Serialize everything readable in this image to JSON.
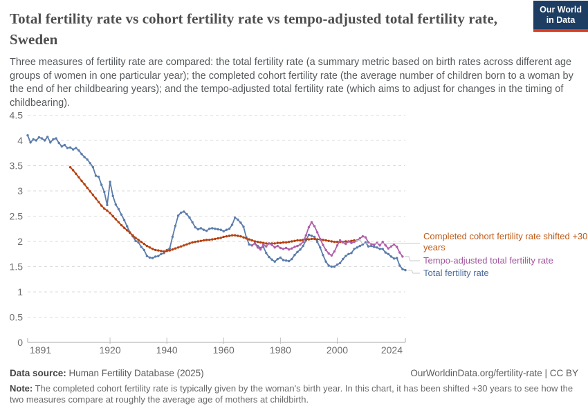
{
  "header": {
    "title": "Total fertility rate vs cohort fertility rate vs tempo-adjusted total fertility rate, Sweden",
    "subtitle": "Three measures of fertility rate are compared: the total fertility rate (a summary metric based on birth rates across different age groups of women in one particular year); the completed cohort fertility rate (the average number of children born to a woman by the end of her childbearing years); and the tempo-adjusted total fertility rate (which aims to adjust for changes in the timing of childbearing).",
    "logo": {
      "line1": "Our World",
      "line2": "in Data"
    }
  },
  "legend": {
    "items": [
      {
        "label": "Completed cohort fertility rate shifted +30 years",
        "color": "#be5915"
      },
      {
        "label": "Tempo-adjusted total fertility rate",
        "color": "#a2559c"
      },
      {
        "label": "Total fertility rate",
        "color": "#4c6a9c"
      }
    ]
  },
  "footer": {
    "source_label": "Data source:",
    "source_value": " Human Fertility Database (2025)",
    "link": "OurWorldinData.org/fertility-rate | CC BY",
    "note_label": "Note:",
    "note_text": " The completed cohort fertility rate is typically given by the woman's birth year. In this chart, it has been shifted +30 years to see how the two measures compare at roughly the average age of mothers at childbirth."
  },
  "chart_data": {
    "type": "line",
    "title": "Total fertility rate vs cohort fertility rate vs tempo-adjusted total fertility rate, Sweden",
    "xlabel": "",
    "ylabel": "",
    "xlim": [
      1891,
      2024
    ],
    "ylim": [
      0,
      4.5
    ],
    "grid": "horizontal-dashed",
    "legend_position": "right-of-line-ends",
    "x_ticks": [
      {
        "v": 1891,
        "label": "1891"
      },
      {
        "v": 1920,
        "label": "1920"
      },
      {
        "v": 1940,
        "label": "1940"
      },
      {
        "v": 1960,
        "label": "1960"
      },
      {
        "v": 1980,
        "label": "1980"
      },
      {
        "v": 2000,
        "label": "2000"
      },
      {
        "v": 2024,
        "label": "2024"
      }
    ],
    "y_ticks": [
      {
        "v": 0,
        "label": "0"
      },
      {
        "v": 0.5,
        "label": "0.5"
      },
      {
        "v": 1,
        "label": "1"
      },
      {
        "v": 1.5,
        "label": "1.5"
      },
      {
        "v": 2,
        "label": "2"
      },
      {
        "v": 2.5,
        "label": "2.5"
      },
      {
        "v": 3,
        "label": "3"
      },
      {
        "v": 3.5,
        "label": "3.5"
      },
      {
        "v": 4,
        "label": "4"
      },
      {
        "v": 4.5,
        "label": "4.5"
      }
    ],
    "series": [
      {
        "name": "Total fertility rate",
        "color": "#5b7cab",
        "start_year": 1891,
        "values": [
          4.1,
          3.96,
          4.02,
          4.0,
          4.06,
          4.04,
          4.0,
          4.07,
          3.96,
          4.02,
          4.04,
          3.95,
          3.88,
          3.91,
          3.85,
          3.86,
          3.82,
          3.85,
          3.8,
          3.73,
          3.67,
          3.62,
          3.55,
          3.47,
          3.3,
          3.28,
          3.12,
          2.98,
          2.72,
          3.18,
          2.9,
          2.73,
          2.64,
          2.53,
          2.42,
          2.3,
          2.18,
          2.1,
          2.01,
          1.98,
          1.89,
          1.83,
          1.71,
          1.68,
          1.67,
          1.7,
          1.71,
          1.75,
          1.77,
          1.83,
          1.86,
          2.09,
          2.31,
          2.51,
          2.57,
          2.59,
          2.54,
          2.47,
          2.38,
          2.28,
          2.24,
          2.26,
          2.23,
          2.21,
          2.25,
          2.26,
          2.25,
          2.24,
          2.23,
          2.2,
          2.23,
          2.25,
          2.33,
          2.47,
          2.43,
          2.37,
          2.29,
          2.08,
          1.94,
          1.92,
          1.96,
          1.91,
          1.87,
          1.89,
          1.77,
          1.69,
          1.64,
          1.6,
          1.65,
          1.68,
          1.63,
          1.62,
          1.61,
          1.65,
          1.73,
          1.79,
          1.84,
          1.91,
          2.02,
          2.13,
          2.11,
          2.09,
          1.99,
          1.88,
          1.73,
          1.6,
          1.52,
          1.5,
          1.5,
          1.54,
          1.57,
          1.65,
          1.71,
          1.75,
          1.77,
          1.85,
          1.88,
          1.91,
          1.94,
          1.98,
          1.9,
          1.91,
          1.89,
          1.88,
          1.85,
          1.85,
          1.78,
          1.75,
          1.7,
          1.66,
          1.67,
          1.52,
          1.45,
          1.43
        ]
      },
      {
        "name": "Completed cohort fertility rate shifted +30 years",
        "color": "#b5400f",
        "start_year": 1906,
        "values": [
          3.47,
          3.41,
          3.34,
          3.27,
          3.2,
          3.13,
          3.06,
          2.99,
          2.92,
          2.85,
          2.78,
          2.71,
          2.65,
          2.61,
          2.56,
          2.5,
          2.44,
          2.38,
          2.32,
          2.27,
          2.22,
          2.17,
          2.12,
          2.07,
          2.03,
          1.99,
          1.95,
          1.91,
          1.88,
          1.85,
          1.83,
          1.82,
          1.81,
          1.8,
          1.81,
          1.82,
          1.84,
          1.86,
          1.88,
          1.9,
          1.92,
          1.94,
          1.96,
          1.98,
          1.99,
          2.0,
          2.01,
          2.02,
          2.03,
          2.03,
          2.04,
          2.05,
          2.06,
          2.07,
          2.09,
          2.1,
          2.11,
          2.12,
          2.12,
          2.11,
          2.1,
          2.08,
          2.06,
          2.04,
          2.02,
          2.0,
          1.99,
          1.98,
          1.97,
          1.96,
          1.96,
          1.96,
          1.96,
          1.97,
          1.97,
          1.98,
          1.98,
          1.99,
          2.0,
          2.01,
          2.02,
          2.02,
          2.03,
          2.04,
          2.04,
          2.05,
          2.05,
          2.04,
          2.04,
          2.03,
          2.02,
          2.01,
          2.0,
          1.99,
          1.99,
          1.99,
          1.99,
          2.0,
          2.0,
          2.01,
          2.02
        ]
      },
      {
        "name": "Tempo-adjusted total fertility rate",
        "color": "#b05fa9",
        "start_year": 1970,
        "values": [
          1.92,
          1.96,
          1.88,
          1.84,
          1.94,
          1.9,
          1.96,
          1.93,
          1.88,
          1.91,
          1.87,
          1.85,
          1.87,
          1.84,
          1.86,
          1.89,
          1.91,
          1.94,
          1.99,
          2.12,
          2.28,
          2.38,
          2.3,
          2.18,
          2.05,
          1.93,
          1.83,
          1.76,
          1.72,
          1.8,
          1.92,
          2.02,
          1.98,
          1.95,
          2.0,
          1.97,
          1.99,
          2.02,
          2.06,
          2.1,
          2.08,
          1.98,
          1.95,
          1.93,
          1.97,
          1.92,
          1.99,
          1.92,
          1.86,
          1.9,
          1.94,
          1.89,
          1.78,
          1.7
        ]
      }
    ]
  }
}
